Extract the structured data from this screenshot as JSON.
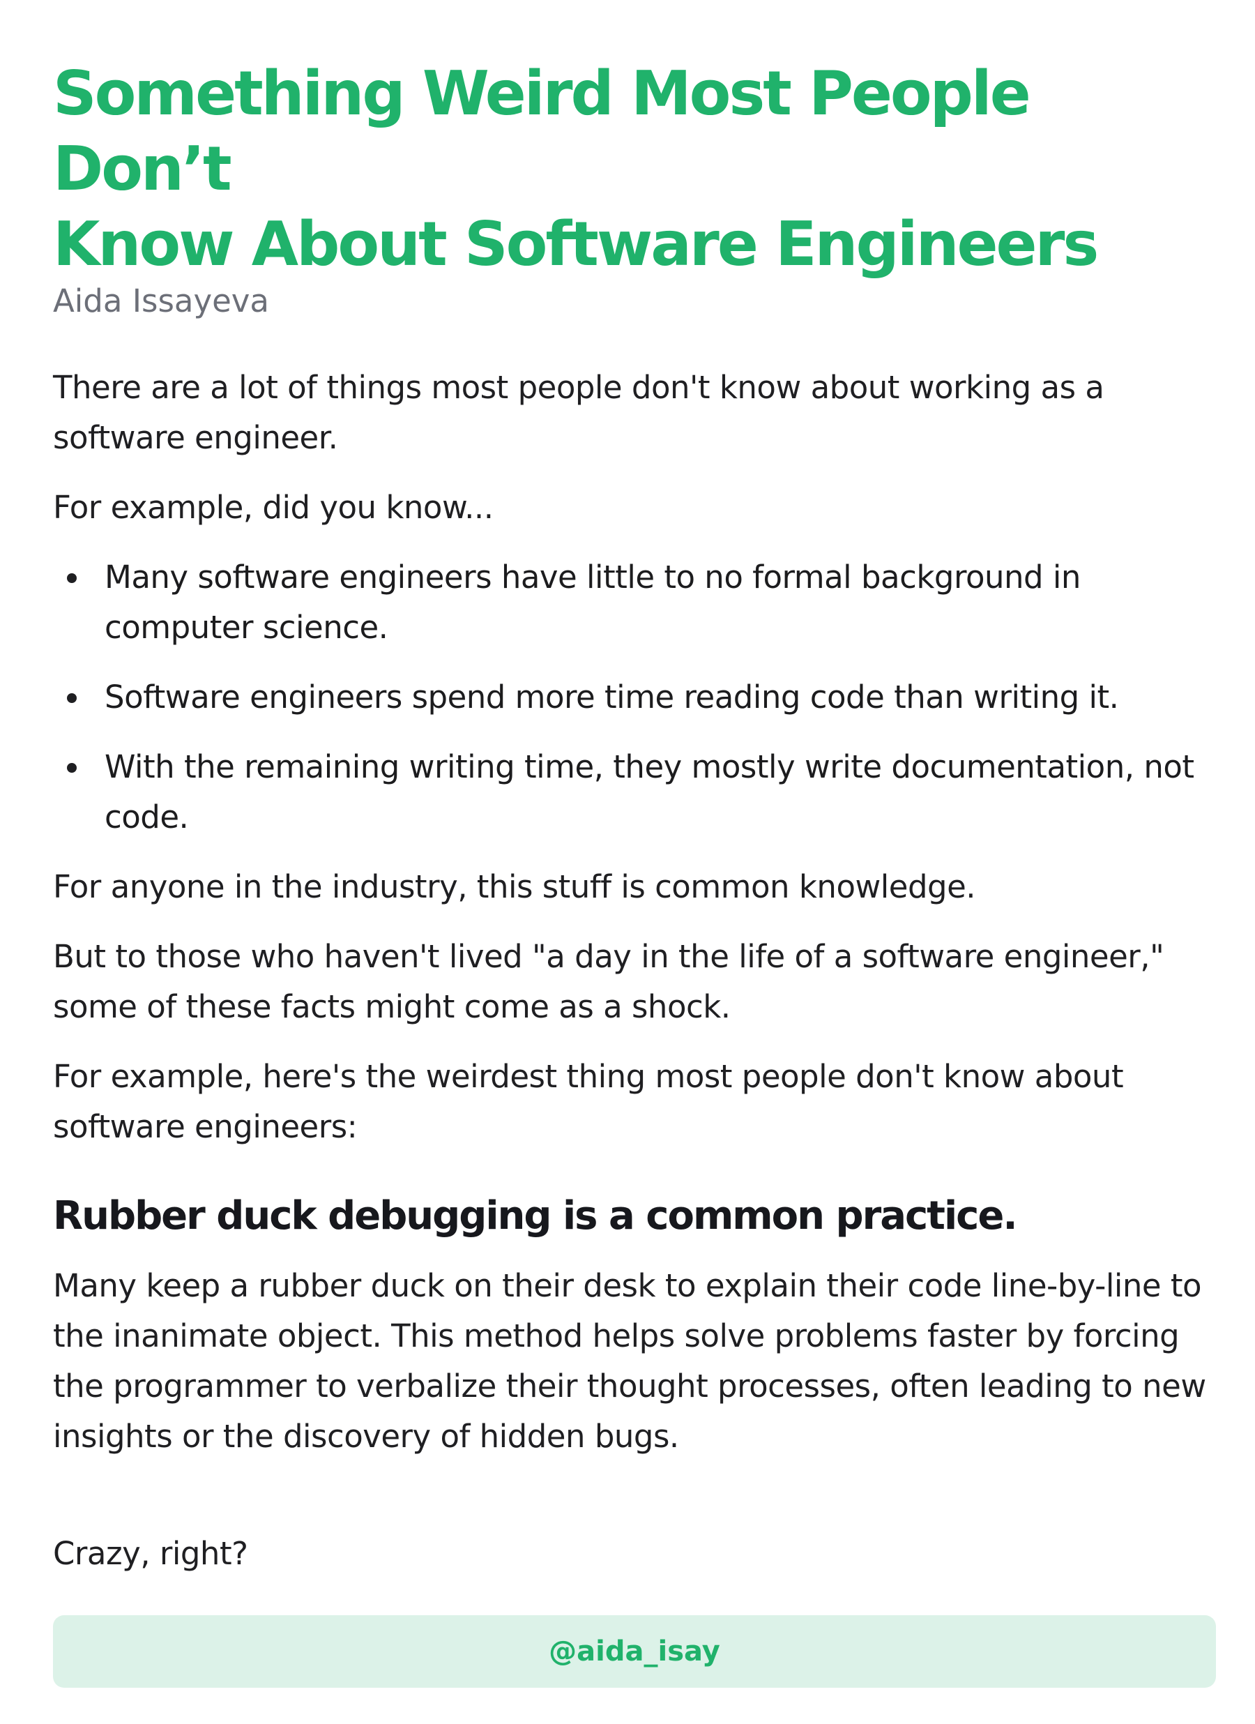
{
  "article": {
    "title_line1": "Something Weird Most People Don’t",
    "title_line2": "Know About Software Engineers",
    "author": "Aida Issayeva",
    "intro": "There are a lot of things most people don't know about working as a software engineer.",
    "example_lead": "For example, did you know...",
    "facts": [
      "Many software engineers have little to no formal background in computer science.",
      "Software engineers spend more time reading code than writing it.",
      "With the remaining writing time, they mostly write documentation, not code."
    ],
    "common_knowledge": "For anyone in the industry, this stuff is common knowledge.",
    "shock": "But to those who haven't lived \"a day in the life of a software engineer,\" some of these facts might come as a shock.",
    "weirdest_lead": "For example, here's the weirdest thing most people don't know about software engineers:",
    "subheading": "Rubber duck debugging is a common practice.",
    "explanation": "Many keep a rubber duck on their desk to explain their code line-by-line to the inanimate object. This method helps solve problems faster by forcing the programmer to verbalize their thought processes, often leading to new insights or the discovery of hidden bugs.",
    "closing": "Crazy, right?"
  },
  "footer": {
    "handle": "@aida_isay"
  },
  "colors": {
    "accent": "#20b26b",
    "footer_bg": "#dcf2e8",
    "author_gray": "#6c6f78"
  }
}
